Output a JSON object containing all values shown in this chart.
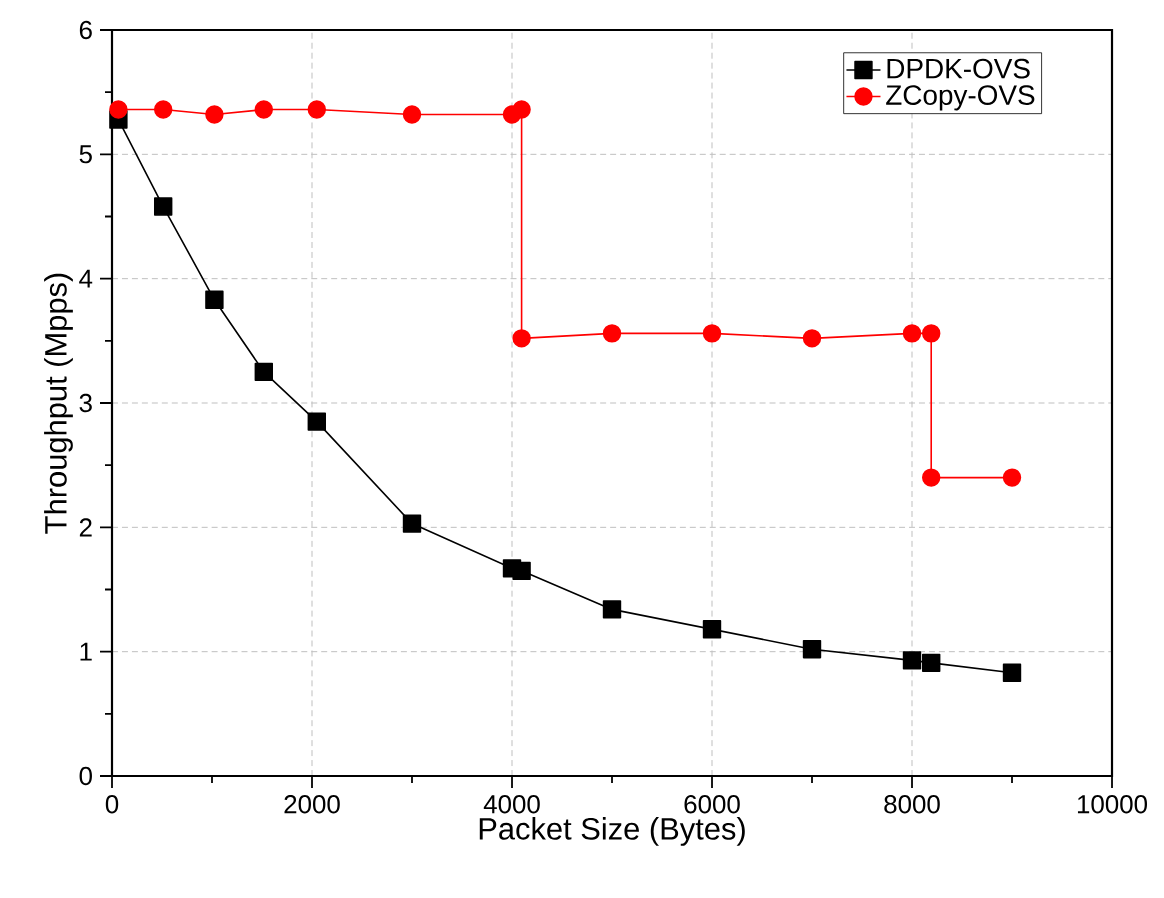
{
  "chart_data": {
    "type": "line",
    "xlabel": "Packet Size (Bytes)",
    "ylabel": "Throughput (Mpps)",
    "xlim": [
      0,
      10000
    ],
    "xticks": [
      0,
      2000,
      4000,
      6000,
      8000,
      10000
    ],
    "ylim": [
      0,
      6
    ],
    "yticks": [
      0,
      1,
      2,
      3,
      4,
      5,
      6
    ],
    "grid": true,
    "legend": "top right",
    "line_style": "solid",
    "series": [
      {
        "name": "DPDK-OVS",
        "color": "#000000",
        "marker": "square",
        "x": [
          64,
          512,
          1024,
          1518,
          2048,
          3000,
          4000,
          4096,
          5000,
          6000,
          7000,
          8000,
          8192,
          9000
        ],
        "values": [
          5.28,
          4.58,
          3.83,
          3.25,
          2.85,
          2.03,
          1.67,
          1.65,
          1.34,
          1.18,
          1.02,
          0.93,
          0.91,
          0.83
        ]
      },
      {
        "name": "ZCopy-OVS",
        "color": "#ff0000",
        "marker": "circle",
        "x": [
          64,
          512,
          1024,
          1518,
          2048,
          3000,
          4000,
          4096,
          4096,
          5000,
          6000,
          7000,
          8000,
          8192,
          8192,
          9000
        ],
        "values": [
          5.36,
          5.36,
          5.32,
          5.36,
          5.36,
          5.32,
          5.32,
          5.36,
          3.52,
          3.56,
          3.56,
          3.52,
          3.56,
          3.56,
          2.4,
          2.4
        ]
      }
    ]
  }
}
